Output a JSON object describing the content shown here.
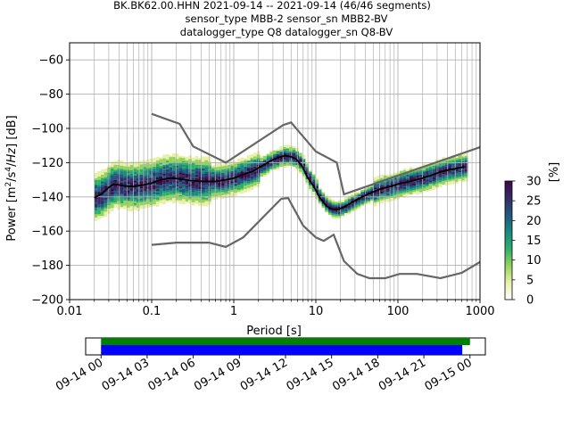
{
  "chart_data": {
    "type": "heatmap",
    "title_lines": [
      "BK.BK62.00.HHN   2021-09-14 -- 2021-09-14  (46/46 segments)",
      "sensor_type MBB-2 sensor_sn MBB2-BV",
      "datalogger_type Q8 datalogger_sn Q8-BV"
    ],
    "xlabel": "Period [s]",
    "ylabel": "Power [m²/s⁴/Hz] [dB]",
    "x_scale": "log",
    "xlim": [
      0.01,
      1000
    ],
    "ylim": [
      -200,
      -50
    ],
    "x_ticks": [
      {
        "value": 0.01,
        "label": "0.01"
      },
      {
        "value": 0.1,
        "label": "0.1"
      },
      {
        "value": 1,
        "label": "1"
      },
      {
        "value": 10,
        "label": "10"
      },
      {
        "value": 100,
        "label": "100"
      },
      {
        "value": 1000,
        "label": "1000"
      }
    ],
    "y_ticks": [
      {
        "value": -60,
        "label": "−60"
      },
      {
        "value": -80,
        "label": "−80"
      },
      {
        "value": -100,
        "label": "−100"
      },
      {
        "value": -120,
        "label": "−120"
      },
      {
        "value": -140,
        "label": "−140"
      },
      {
        "value": -160,
        "label": "−160"
      },
      {
        "value": -180,
        "label": "−180"
      },
      {
        "value": -200,
        "label": "−200"
      }
    ],
    "grid": true,
    "noise_models": {
      "high": [
        [
          0.1,
          -91.5
        ],
        [
          0.22,
          -97.4
        ],
        [
          0.32,
          -110.5
        ],
        [
          0.8,
          -120
        ],
        [
          4.0,
          -98
        ],
        [
          5.0,
          -96.5
        ],
        [
          6.0,
          -101
        ],
        [
          10,
          -113.5
        ],
        [
          18,
          -120
        ],
        [
          22,
          -138.5
        ],
        [
          1000,
          -111
        ]
      ],
      "low": [
        [
          0.1,
          -168
        ],
        [
          0.2,
          -166.7
        ],
        [
          0.5,
          -166.7
        ],
        [
          0.8,
          -169.2
        ],
        [
          1.3,
          -163.7
        ],
        [
          3.8,
          -141.1
        ],
        [
          4.6,
          -140.7
        ],
        [
          7.0,
          -156.7
        ],
        [
          10,
          -163.7
        ],
        [
          12.5,
          -165.7
        ],
        [
          16.5,
          -162.1
        ],
        [
          22,
          -177.5
        ],
        [
          32,
          -185
        ],
        [
          45,
          -187.5
        ],
        [
          70,
          -187.5
        ],
        [
          105,
          -185
        ],
        [
          170,
          -185
        ],
        [
          330,
          -187.5
        ],
        [
          600,
          -184.4
        ],
        [
          1000,
          -178
        ]
      ]
    },
    "mode_curve": [
      [
        0.02,
        -140.5
      ],
      [
        0.025,
        -138
      ],
      [
        0.03,
        -134.5
      ],
      [
        0.035,
        -132.5
      ],
      [
        0.045,
        -133.5
      ],
      [
        0.06,
        -134
      ],
      [
        0.08,
        -133
      ],
      [
        0.1,
        -132
      ],
      [
        0.13,
        -130
      ],
      [
        0.17,
        -129
      ],
      [
        0.22,
        -129.5
      ],
      [
        0.3,
        -130.5
      ],
      [
        0.45,
        -131
      ],
      [
        0.6,
        -131
      ],
      [
        0.8,
        -130
      ],
      [
        1.0,
        -129
      ],
      [
        1.3,
        -127
      ],
      [
        1.7,
        -125
      ],
      [
        2.2,
        -122
      ],
      [
        2.8,
        -119
      ],
      [
        3.5,
        -117
      ],
      [
        4.2,
        -116
      ],
      [
        5.0,
        -116.5
      ],
      [
        5.8,
        -118
      ],
      [
        6.8,
        -122
      ],
      [
        8.0,
        -129
      ],
      [
        9.5,
        -134
      ],
      [
        11,
        -140
      ],
      [
        13,
        -144.5
      ],
      [
        15,
        -147
      ],
      [
        18,
        -147.5
      ],
      [
        22,
        -146
      ],
      [
        28,
        -143
      ],
      [
        35,
        -140.5
      ],
      [
        45,
        -138
      ],
      [
        60,
        -135.5
      ],
      [
        80,
        -134
      ],
      [
        100,
        -132.5
      ],
      [
        140,
        -131
      ],
      [
        200,
        -129
      ],
      [
        270,
        -127
      ],
      [
        350,
        -125
      ],
      [
        450,
        -124
      ],
      [
        550,
        -123
      ],
      [
        650,
        -122.5
      ]
    ],
    "colorbar": {
      "label": "[%]",
      "range": [
        0,
        30
      ],
      "ticks": [
        {
          "value": 0,
          "label": "0"
        },
        {
          "value": 5,
          "label": "5"
        },
        {
          "value": 10,
          "label": "10"
        },
        {
          "value": 15,
          "label": "15"
        },
        {
          "value": 20,
          "label": "20"
        },
        {
          "value": 25,
          "label": "25"
        },
        {
          "value": 30,
          "label": "30"
        }
      ],
      "stops": [
        "#ffffff",
        "#e8f0a8",
        "#93d35c",
        "#2fae6a",
        "#19897f",
        "#23577f",
        "#352b66",
        "#3b0a47"
      ]
    },
    "timeline": {
      "range_hours": [
        -1,
        25
      ],
      "ticks": [
        {
          "value": 0,
          "label": "09-14 00"
        },
        {
          "value": 3,
          "label": "09-14 03"
        },
        {
          "value": 6,
          "label": "09-14 06"
        },
        {
          "value": 9,
          "label": "09-14 09"
        },
        {
          "value": 12,
          "label": "09-14 12"
        },
        {
          "value": 15,
          "label": "09-14 15"
        },
        {
          "value": 18,
          "label": "09-14 18"
        },
        {
          "value": 21,
          "label": "09-14 21"
        },
        {
          "value": 24,
          "label": "09-15 00"
        }
      ],
      "data_bar": {
        "start_h": 0,
        "end_h": 24.0,
        "color": "#008000"
      },
      "segment_bar": {
        "start_h": 0,
        "end_h": 23.5,
        "color": "#0000ff"
      }
    }
  }
}
